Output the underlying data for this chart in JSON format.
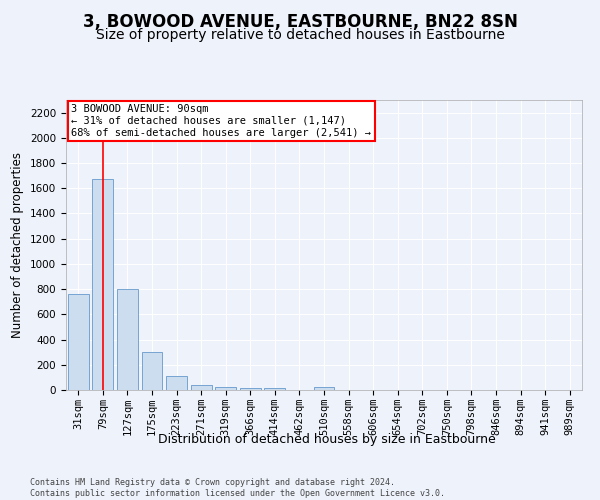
{
  "title": "3, BOWOOD AVENUE, EASTBOURNE, BN22 8SN",
  "subtitle": "Size of property relative to detached houses in Eastbourne",
  "xlabel": "Distribution of detached houses by size in Eastbourne",
  "ylabel": "Number of detached properties",
  "categories": [
    "31sqm",
    "79sqm",
    "127sqm",
    "175sqm",
    "223sqm",
    "271sqm",
    "319sqm",
    "366sqm",
    "414sqm",
    "462sqm",
    "510sqm",
    "558sqm",
    "606sqm",
    "654sqm",
    "702sqm",
    "750sqm",
    "798sqm",
    "846sqm",
    "894sqm",
    "941sqm",
    "989sqm"
  ],
  "values": [
    760,
    1670,
    800,
    300,
    110,
    38,
    25,
    18,
    18,
    0,
    25,
    0,
    0,
    0,
    0,
    0,
    0,
    0,
    0,
    0,
    0
  ],
  "bar_color": "#ccddf0",
  "bar_edge_color": "#6699cc",
  "red_line_x": 1,
  "annotation_text": "3 BOWOOD AVENUE: 90sqm\n← 31% of detached houses are smaller (1,147)\n68% of semi-detached houses are larger (2,541) →",
  "annotation_box_color": "white",
  "annotation_box_edge": "red",
  "ylim": [
    0,
    2300
  ],
  "yticks": [
    0,
    200,
    400,
    600,
    800,
    1000,
    1200,
    1400,
    1600,
    1800,
    2000,
    2200
  ],
  "title_fontsize": 12,
  "subtitle_fontsize": 10,
  "xlabel_fontsize": 9,
  "ylabel_fontsize": 8.5,
  "tick_fontsize": 7.5,
  "annot_fontsize": 7.5,
  "footer_text": "Contains HM Land Registry data © Crown copyright and database right 2024.\nContains public sector information licensed under the Open Government Licence v3.0.",
  "background_color": "#eef2fb",
  "plot_background": "#eef2fb"
}
